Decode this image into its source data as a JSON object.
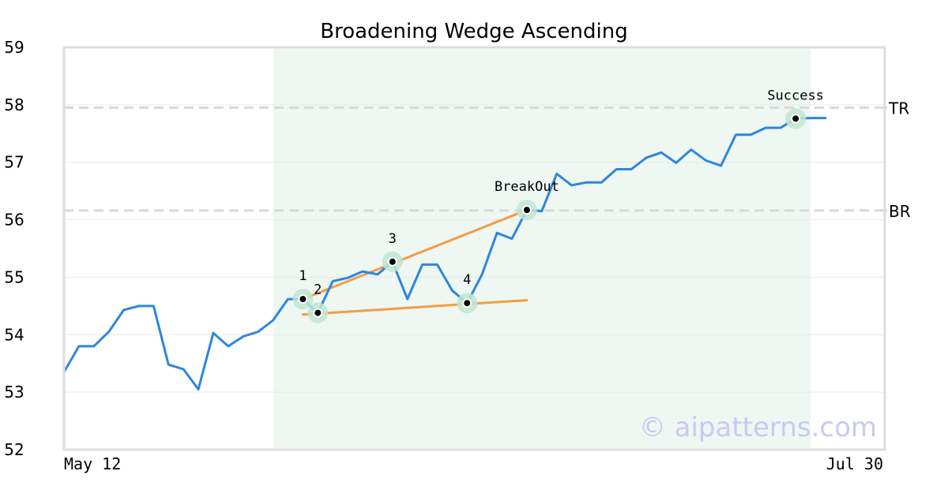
{
  "chart_data": {
    "type": "line",
    "title": "Broadening Wedge Ascending",
    "xlabel": "",
    "ylabel": "",
    "ylim": [
      52,
      59
    ],
    "yticks": [
      "52",
      "53",
      "54",
      "55",
      "56",
      "57",
      "58",
      "59"
    ],
    "x_tick_labels": [
      "May 12",
      "Jul 30"
    ],
    "grid": "horizontal",
    "series": [
      {
        "values": [
          53.35,
          53.8,
          53.8,
          54.05,
          54.43,
          54.5,
          54.5,
          53.48,
          53.4,
          53.05,
          54.03,
          53.8,
          53.97,
          54.05,
          54.25,
          54.62,
          54.62,
          54.38,
          54.93,
          54.99,
          55.1,
          55.05,
          55.27,
          54.62,
          55.22,
          55.22,
          54.77,
          54.55,
          55.05,
          55.77,
          55.67,
          56.17,
          56.15,
          56.8,
          56.6,
          56.65,
          56.65,
          56.88,
          56.88,
          57.08,
          57.17,
          56.99,
          57.22,
          57.03,
          56.94,
          57.48,
          57.48,
          57.6,
          57.6,
          57.76,
          57.77,
          57.77
        ]
      }
    ],
    "highlight_range": {
      "start_index": 14,
      "end_index": 50
    },
    "reference_lines": [
      {
        "label": "TR",
        "value": 57.95,
        "color": "#d9d9d9"
      },
      {
        "label": "BR",
        "value": 56.16,
        "color": "#d9d9d9"
      }
    ],
    "trendlines": [
      {
        "from": {
          "index": 16,
          "value": 54.62
        },
        "to": {
          "index": 31,
          "value": 56.17
        },
        "color": "#f39c45"
      },
      {
        "from": {
          "index": 16,
          "value": 54.35
        },
        "to": {
          "index": 31,
          "value": 54.6
        },
        "color": "#f39c45"
      }
    ],
    "markers": [
      {
        "label": "1",
        "index": 16,
        "value": 54.62
      },
      {
        "label": "2",
        "index": 17,
        "value": 54.38
      },
      {
        "label": "3",
        "index": 22,
        "value": 55.27
      },
      {
        "label": "4",
        "index": 27,
        "value": 54.55
      },
      {
        "label": "BreakOut",
        "index": 31,
        "value": 56.17
      },
      {
        "label": "Success",
        "index": 49,
        "value": 57.76
      }
    ],
    "watermark": "© aipatterns.com",
    "colors": {
      "line": "#2e86de",
      "highlight": "#eef7f2",
      "marker_halo": "#bfe6d2",
      "watermark": "#c9c9f5"
    }
  }
}
